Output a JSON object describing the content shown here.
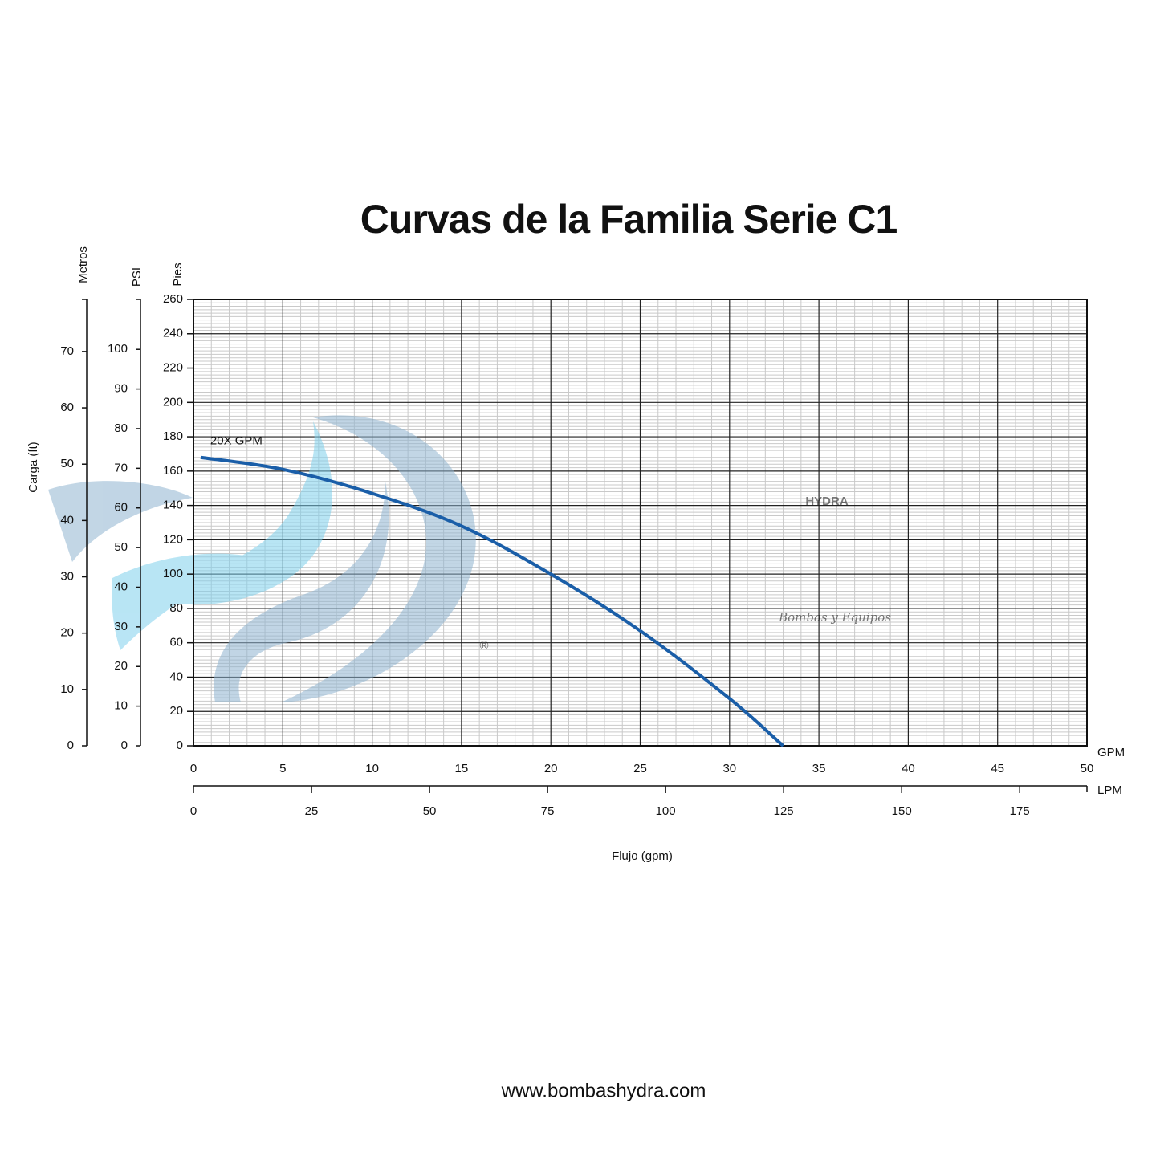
{
  "chart_data": {
    "type": "line",
    "title": "Curvas de la Familia Serie C1",
    "x_label": "Flujo (gpm)",
    "y_label": "Carga (ft)",
    "x_unit": "GPM",
    "xlim": [
      0,
      50
    ],
    "xticks": [
      0,
      5,
      10,
      15,
      20,
      25,
      30,
      35,
      40,
      45,
      50
    ],
    "x2": {
      "unit": "LPM",
      "xlim": [
        0,
        189.25
      ],
      "xticks": [
        0,
        25,
        50,
        75,
        100,
        125,
        150,
        175
      ]
    },
    "y_unit": "Pies",
    "ylim": [
      0,
      260
    ],
    "yticks": [
      0,
      20,
      40,
      60,
      80,
      100,
      120,
      140,
      160,
      180,
      200,
      220,
      240,
      260
    ],
    "extra_y": [
      {
        "unit": "Metros",
        "ylim": [
          0,
          79.25
        ],
        "yticks": [
          0,
          10,
          20,
          30,
          40,
          50,
          60,
          70
        ]
      },
      {
        "unit": "PSI",
        "ylim": [
          0,
          112.6
        ],
        "yticks": [
          0,
          10,
          20,
          30,
          40,
          50,
          60,
          70,
          80,
          90,
          100
        ]
      }
    ],
    "grid": true,
    "series": [
      {
        "name": "20X GPM",
        "color": "#1a5ea8",
        "x": [
          0.4,
          5,
          10,
          15,
          20,
          25,
          30,
          33
        ],
        "values": [
          168,
          161,
          147,
          128,
          100,
          67,
          27.5,
          0
        ]
      }
    ],
    "watermark": {
      "brand": "HYDRA",
      "tagline": "Bombas y Equipos",
      "mark": "®"
    },
    "footer": "www.bombashydra.com"
  }
}
